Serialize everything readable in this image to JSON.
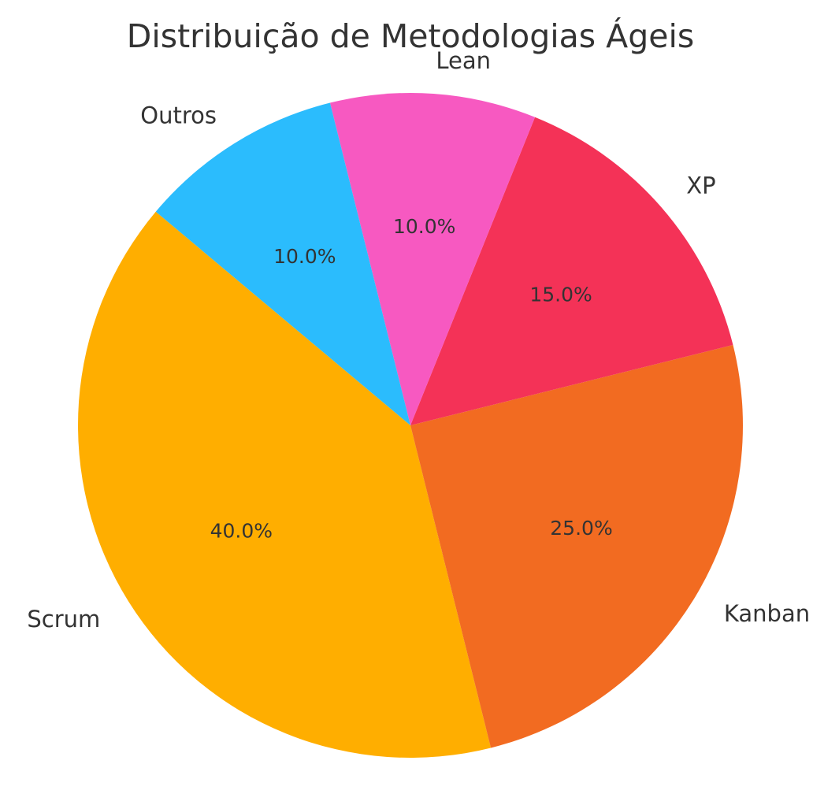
{
  "chart_data": {
    "type": "pie",
    "title": "Distribuição de Metodologias Ágeis",
    "slices": [
      {
        "label": "Scrum",
        "value": 40.0,
        "pct_text": "40.0%",
        "color": "#FFAE00"
      },
      {
        "label": "Kanban",
        "value": 25.0,
        "pct_text": "25.0%",
        "color": "#F26B21"
      },
      {
        "label": "XP",
        "value": 15.0,
        "pct_text": "15.0%",
        "color": "#F43257"
      },
      {
        "label": "Lean",
        "value": 10.0,
        "pct_text": "10.0%",
        "color": "#F759C1"
      },
      {
        "label": "Outros",
        "value": 10.0,
        "pct_text": "10.0%",
        "color": "#2BBCFD"
      }
    ],
    "legend": "none"
  }
}
